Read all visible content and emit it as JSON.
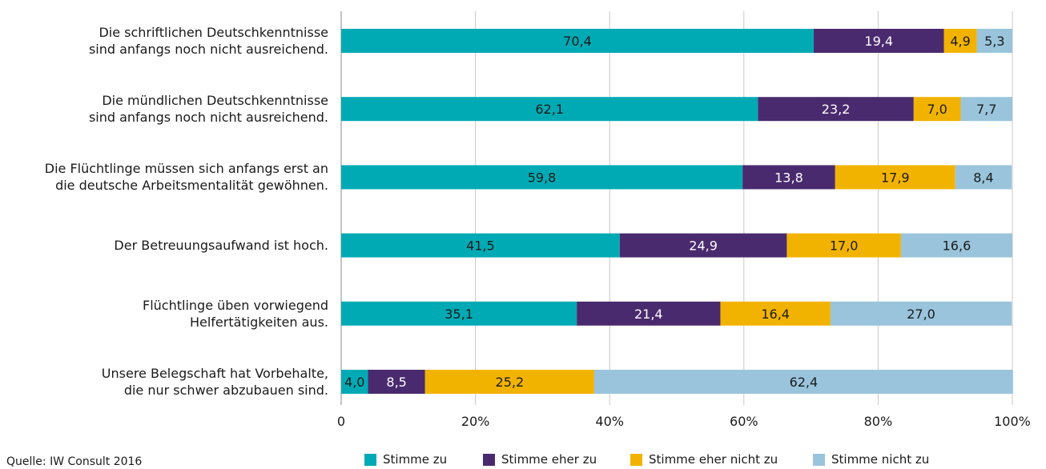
{
  "chart_data": {
    "type": "bar",
    "orientation": "horizontal",
    "stacked": true,
    "categories": [
      [
        "Die schriftlichen Deutschkenntnisse",
        "sind anfangs noch nicht ausreichend."
      ],
      [
        "Die mündlichen Deutschkenntnisse",
        "sind anfangs noch nicht ausreichend."
      ],
      [
        "Die Flüchtlinge müssen sich anfangs erst an",
        "die deutsche Arbeitsmentalität gewöhnen."
      ],
      [
        "Der Betreuungsaufwand ist hoch."
      ],
      [
        "Flüchtlinge üben vorwiegend",
        "Helfertätigkeiten aus."
      ],
      [
        "Unsere Belegschaft hat Vorbehalte,",
        "die nur schwer abzubauen sind."
      ]
    ],
    "series": [
      {
        "name": "Stimme zu",
        "color": "#00aab4",
        "values": [
          70.4,
          62.1,
          59.8,
          41.5,
          35.1,
          4.0
        ],
        "labels": [
          "70,4",
          "62,1",
          "59,8",
          "41,5",
          "35,1",
          "4,0"
        ],
        "label_color": "#1a1a1a"
      },
      {
        "name": "Stimme eher zu",
        "color": "#4a2a6e",
        "values": [
          19.4,
          23.2,
          13.8,
          24.9,
          21.4,
          8.5
        ],
        "labels": [
          "19,4",
          "23,2",
          "13,8",
          "24,9",
          "21,4",
          "8,5"
        ],
        "label_color": "#ffffff"
      },
      {
        "name": "Stimme eher nicht zu",
        "color": "#f2b300",
        "values": [
          4.9,
          7.0,
          17.9,
          17.0,
          16.4,
          25.2
        ],
        "labels": [
          "4,9",
          "7,0",
          "17,9",
          "17,0",
          "16,4",
          "25,2"
        ],
        "label_color": "#1a1a1a"
      },
      {
        "name": "Stimme nicht zu",
        "color": "#99c4dc",
        "values": [
          5.3,
          7.7,
          8.4,
          16.6,
          27.0,
          62.4
        ],
        "labels": [
          "5,3",
          "7,7",
          "8,4",
          "16,6",
          "27,0",
          "62,4"
        ],
        "label_color": "#1a1a1a"
      }
    ],
    "xlim": [
      0,
      100
    ],
    "xticks": [
      "0",
      "20%",
      "40%",
      "60%",
      "80%",
      "100%"
    ],
    "grid": "vertical",
    "legend_position": "bottom"
  },
  "source": "Quelle: IW Consult 2016"
}
